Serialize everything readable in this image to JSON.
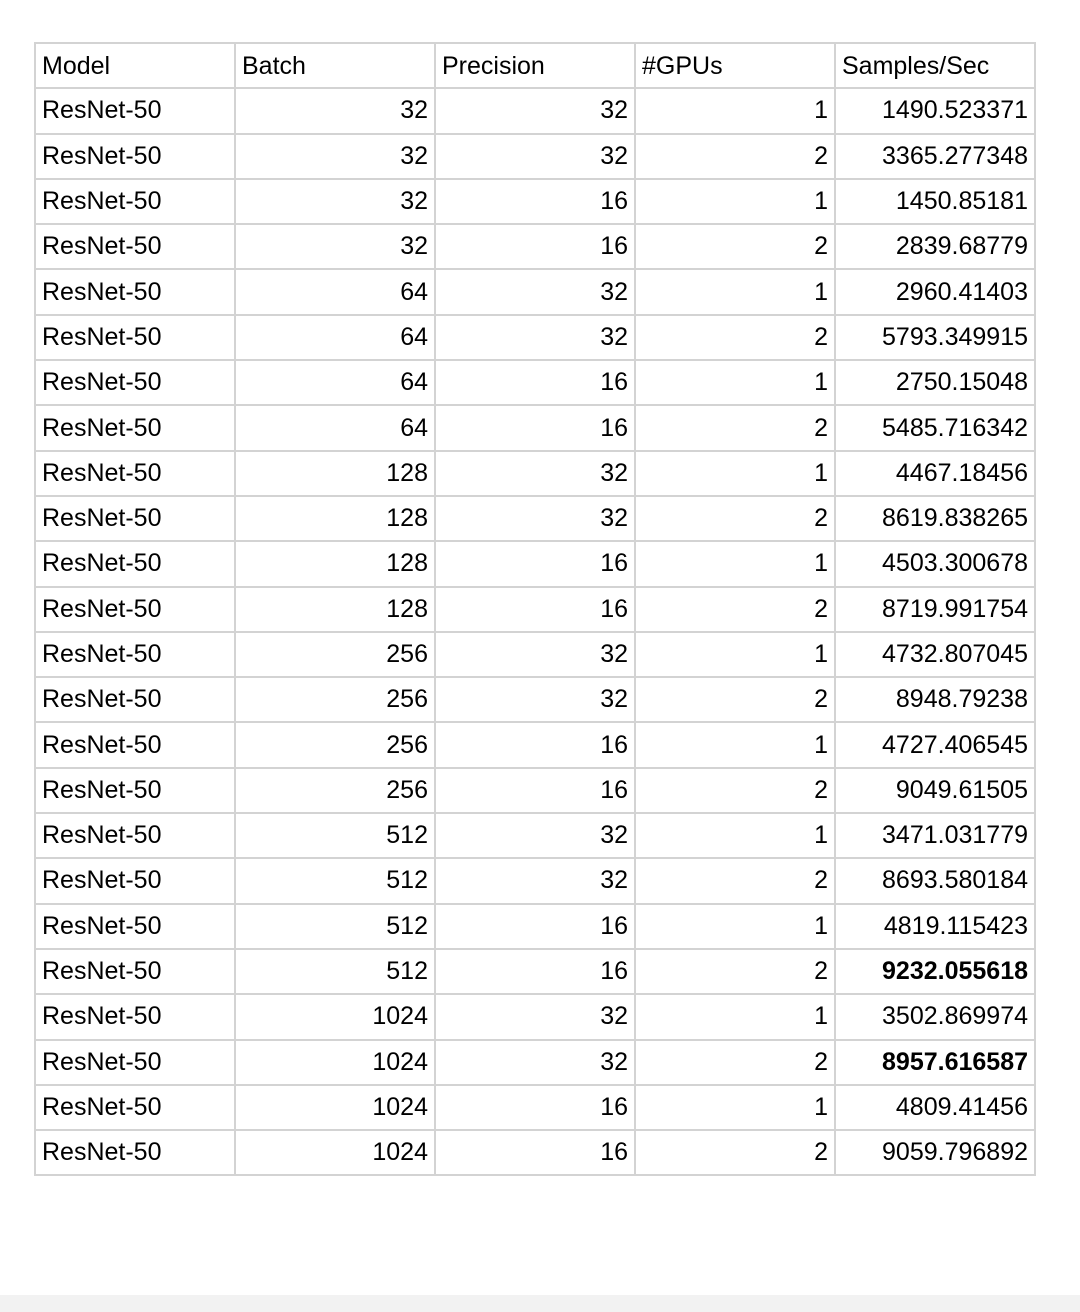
{
  "table": {
    "headers": [
      "Model",
      "Batch",
      "Precision",
      "#GPUs",
      "Samples/Sec"
    ],
    "rows": [
      {
        "model": "ResNet-50",
        "batch": "32",
        "precision": "32",
        "gpus": "1",
        "samples_per_sec": "1490.523371",
        "bold": false
      },
      {
        "model": "ResNet-50",
        "batch": "32",
        "precision": "32",
        "gpus": "2",
        "samples_per_sec": "3365.277348",
        "bold": false
      },
      {
        "model": "ResNet-50",
        "batch": "32",
        "precision": "16",
        "gpus": "1",
        "samples_per_sec": "1450.85181",
        "bold": false
      },
      {
        "model": "ResNet-50",
        "batch": "32",
        "precision": "16",
        "gpus": "2",
        "samples_per_sec": "2839.68779",
        "bold": false
      },
      {
        "model": "ResNet-50",
        "batch": "64",
        "precision": "32",
        "gpus": "1",
        "samples_per_sec": "2960.41403",
        "bold": false
      },
      {
        "model": "ResNet-50",
        "batch": "64",
        "precision": "32",
        "gpus": "2",
        "samples_per_sec": "5793.349915",
        "bold": false
      },
      {
        "model": "ResNet-50",
        "batch": "64",
        "precision": "16",
        "gpus": "1",
        "samples_per_sec": "2750.15048",
        "bold": false
      },
      {
        "model": "ResNet-50",
        "batch": "64",
        "precision": "16",
        "gpus": "2",
        "samples_per_sec": "5485.716342",
        "bold": false
      },
      {
        "model": "ResNet-50",
        "batch": "128",
        "precision": "32",
        "gpus": "1",
        "samples_per_sec": "4467.18456",
        "bold": false
      },
      {
        "model": "ResNet-50",
        "batch": "128",
        "precision": "32",
        "gpus": "2",
        "samples_per_sec": "8619.838265",
        "bold": false
      },
      {
        "model": "ResNet-50",
        "batch": "128",
        "precision": "16",
        "gpus": "1",
        "samples_per_sec": "4503.300678",
        "bold": false
      },
      {
        "model": "ResNet-50",
        "batch": "128",
        "precision": "16",
        "gpus": "2",
        "samples_per_sec": "8719.991754",
        "bold": false
      },
      {
        "model": "ResNet-50",
        "batch": "256",
        "precision": "32",
        "gpus": "1",
        "samples_per_sec": "4732.807045",
        "bold": false
      },
      {
        "model": "ResNet-50",
        "batch": "256",
        "precision": "32",
        "gpus": "2",
        "samples_per_sec": "8948.79238",
        "bold": false
      },
      {
        "model": "ResNet-50",
        "batch": "256",
        "precision": "16",
        "gpus": "1",
        "samples_per_sec": "4727.406545",
        "bold": false
      },
      {
        "model": "ResNet-50",
        "batch": "256",
        "precision": "16",
        "gpus": "2",
        "samples_per_sec": "9049.61505",
        "bold": false
      },
      {
        "model": "ResNet-50",
        "batch": "512",
        "precision": "32",
        "gpus": "1",
        "samples_per_sec": "3471.031779",
        "bold": false
      },
      {
        "model": "ResNet-50",
        "batch": "512",
        "precision": "32",
        "gpus": "2",
        "samples_per_sec": "8693.580184",
        "bold": false
      },
      {
        "model": "ResNet-50",
        "batch": "512",
        "precision": "16",
        "gpus": "1",
        "samples_per_sec": "4819.115423",
        "bold": false
      },
      {
        "model": "ResNet-50",
        "batch": "512",
        "precision": "16",
        "gpus": "2",
        "samples_per_sec": "9232.055618",
        "bold": true
      },
      {
        "model": "ResNet-50",
        "batch": "1024",
        "precision": "32",
        "gpus": "1",
        "samples_per_sec": "3502.869974",
        "bold": false
      },
      {
        "model": "ResNet-50",
        "batch": "1024",
        "precision": "32",
        "gpus": "2",
        "samples_per_sec": "8957.616587",
        "bold": true
      },
      {
        "model": "ResNet-50",
        "batch": "1024",
        "precision": "16",
        "gpus": "1",
        "samples_per_sec": "4809.41456",
        "bold": false
      },
      {
        "model": "ResNet-50",
        "batch": "1024",
        "precision": "16",
        "gpus": "2",
        "samples_per_sec": "9059.796892",
        "bold": false
      }
    ]
  }
}
